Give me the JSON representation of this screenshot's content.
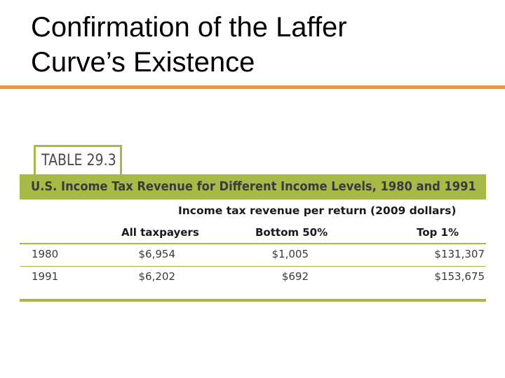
{
  "slide": {
    "title_line1": "Confirmation of the Laffer",
    "title_line2": "Curve’s Existence"
  },
  "colors": {
    "accent_orange": "#e8964a",
    "table_green": "#a9b948",
    "caption_text": "#3b3b3b",
    "tag_text": "#4a4a4a"
  },
  "table": {
    "tag": "TABLE 29.3",
    "caption": "U.S. Income Tax Revenue for Different Income Levels, 1980 and 1991",
    "column_group": "Income tax revenue per return (2009 dollars)",
    "columns": [
      "All taxpayers",
      "Bottom 50%",
      "Top 1%"
    ],
    "rows": [
      {
        "year": "1980",
        "all": "$6,954",
        "bottom": "$1,005",
        "top": "$131,307"
      },
      {
        "year": "1991",
        "all": "$6,202",
        "bottom": "$692",
        "top": "$153,675"
      }
    ]
  }
}
